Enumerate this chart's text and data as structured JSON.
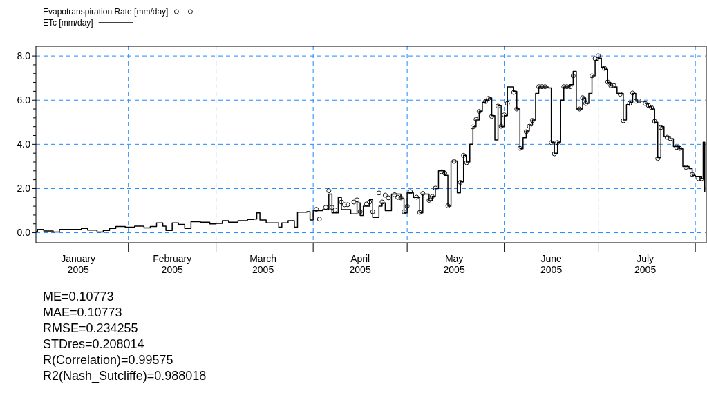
{
  "chart_data": {
    "type": "step",
    "xlim": [
      "2005-01-02T12:00",
      "2005-08-04T12:00"
    ],
    "xticks": [
      {
        "value": "2005-02-01",
        "label": null
      },
      {
        "value": "2005-03-01",
        "label": null
      },
      {
        "value": "2005-04-01",
        "label": null
      },
      {
        "value": "2005-05-01",
        "label": null
      },
      {
        "value": "2005-06-01",
        "label": null
      },
      {
        "value": "2005-07-01",
        "label": null
      },
      {
        "value": "2005-08-01",
        "label": null
      },
      {
        "value": "2005-01-16",
        "label": "January\n2005"
      },
      {
        "value": "2005-02-15",
        "label": "February\n2005"
      },
      {
        "value": "2005-03-16",
        "label": "March\n2005"
      },
      {
        "value": "2005-04-16",
        "label": "April\n2005"
      },
      {
        "value": "2005-05-16",
        "label": "May\n2005"
      },
      {
        "value": "2005-06-16",
        "label": "June\n2005"
      },
      {
        "value": "2005-07-16",
        "label": "July\n2005"
      }
    ],
    "ylim": [
      -0.45,
      8.44
    ],
    "yticks": [
      {
        "value": 0,
        "label": "0.0"
      },
      {
        "value": 0.4,
        "label": null
      },
      {
        "value": 0.8,
        "label": null
      },
      {
        "value": 1.2,
        "label": null
      },
      {
        "value": 1.6,
        "label": null
      },
      {
        "value": 2,
        "label": "2.0"
      },
      {
        "value": 2.4,
        "label": null
      },
      {
        "value": 2.8,
        "label": null
      },
      {
        "value": 3.2,
        "label": null
      },
      {
        "value": 3.6,
        "label": null
      },
      {
        "value": 4,
        "label": "4.0"
      },
      {
        "value": 4.4,
        "label": null
      },
      {
        "value": 4.8,
        "label": null
      },
      {
        "value": 5.2,
        "label": null
      },
      {
        "value": 5.6,
        "label": null
      },
      {
        "value": 6,
        "label": "6.0"
      },
      {
        "value": 6.4,
        "label": null
      },
      {
        "value": 6.8,
        "label": null
      },
      {
        "value": 7.2,
        "label": null
      },
      {
        "value": 7.6,
        "label": null
      },
      {
        "value": 8,
        "label": "8.0"
      }
    ],
    "grid": true,
    "legend": "top left",
    "series": [
      {
        "name": "Evapotranspiration Rate [mm/day]",
        "type": "scatter",
        "marker": "circle",
        "color": "#000000",
        "x": [
          "2005-04-02",
          "2005-04-03",
          "2005-04-05",
          "2005-04-06",
          "2005-04-07",
          "2005-04-08",
          "2005-04-10",
          "2005-04-11",
          "2005-04-12",
          "2005-04-14",
          "2005-04-15",
          "2005-04-16",
          "2005-04-18",
          "2005-04-19",
          "2005-04-20",
          "2005-04-22",
          "2005-04-23",
          "2005-04-24",
          "2005-04-25",
          "2005-04-27",
          "2005-04-28",
          "2005-04-29",
          "2005-04-30",
          "2005-05-01",
          "2005-05-02",
          "2005-05-04",
          "2005-05-05",
          "2005-05-06",
          "2005-05-08",
          "2005-05-09",
          "2005-05-10",
          "2005-05-12",
          "2005-05-13",
          "2005-05-14",
          "2005-05-16",
          "2005-05-18",
          "2005-05-19",
          "2005-05-20",
          "2005-05-22",
          "2005-05-23",
          "2005-05-24",
          "2005-05-26",
          "2005-05-27",
          "2005-05-28",
          "2005-05-30",
          "2005-05-31",
          "2005-06-01",
          "2005-06-02",
          "2005-06-04",
          "2005-06-05",
          "2005-06-06",
          "2005-06-08",
          "2005-06-09",
          "2005-06-10",
          "2005-06-12",
          "2005-06-13",
          "2005-06-14",
          "2005-06-16",
          "2005-06-17",
          "2005-06-18",
          "2005-06-20",
          "2005-06-21",
          "2005-06-22",
          "2005-06-23",
          "2005-06-25",
          "2005-06-26",
          "2005-06-27",
          "2005-06-29",
          "2005-06-30",
          "2005-07-01",
          "2005-07-03",
          "2005-07-04",
          "2005-07-05",
          "2005-07-06",
          "2005-07-08",
          "2005-07-09",
          "2005-07-11",
          "2005-07-12",
          "2005-07-13",
          "2005-07-14",
          "2005-07-16",
          "2005-07-17",
          "2005-07-18",
          "2005-07-19",
          "2005-07-20",
          "2005-07-21",
          "2005-07-23",
          "2005-07-24",
          "2005-07-26",
          "2005-07-27",
          "2005-07-29",
          "2005-07-31",
          "2005-08-02",
          "2005-08-03"
        ],
        "values": [
          1.06,
          0.62,
          1.15,
          1.9,
          1.15,
          1.03,
          1.39,
          1.27,
          1.27,
          1.39,
          1.49,
          0.95,
          1.3,
          1.39,
          0.95,
          1.8,
          1.39,
          1.7,
          1.58,
          1.72,
          1.6,
          1.58,
          0.95,
          1.2,
          1.86,
          1.61,
          0.92,
          1.78,
          1.47,
          1.64,
          2.02,
          2.76,
          2.7,
          1.22,
          3.23,
          2.28,
          3.5,
          3.17,
          4.79,
          5.13,
          5.49,
          5.94,
          6.08,
          5.27,
          5.73,
          4.82,
          5.33,
          5.85,
          6.35,
          5.6,
          3.82,
          4.57,
          4.82,
          5.08,
          6.61,
          6.61,
          6.61,
          4.08,
          3.57,
          4.08,
          6.61,
          6.61,
          6.61,
          7.1,
          5.6,
          6.11,
          5.85,
          7.1,
          7.88,
          8.01,
          7.44,
          6.82,
          6.66,
          6.66,
          6.27,
          5.07,
          5.85,
          6.32,
          5.95,
          5.97,
          5.85,
          5.76,
          5.66,
          5.04,
          3.36,
          4.76,
          4.32,
          4.26,
          3.86,
          3.82,
          2.96,
          2.64,
          2.45,
          2.45
        ]
      },
      {
        "name": "ETc [mm/day]",
        "line_style": "solid",
        "color": "#000000",
        "x": [
          "2005-01-02T12:00",
          "2005-01-03",
          "2005-01-05",
          "2005-01-08",
          "2005-01-10",
          "2005-01-14",
          "2005-01-17",
          "2005-01-19",
          "2005-01-22",
          "2005-01-24",
          "2005-01-26",
          "2005-01-28",
          "2005-01-31",
          "2005-02-03",
          "2005-02-06",
          "2005-02-08",
          "2005-02-10",
          "2005-02-12",
          "2005-02-13",
          "2005-02-15",
          "2005-02-17",
          "2005-02-19",
          "2005-02-21",
          "2005-02-24",
          "2005-02-27",
          "2005-03-01",
          "2005-03-03",
          "2005-03-05",
          "2005-03-08",
          "2005-03-11",
          "2005-03-13",
          "2005-03-14",
          "2005-03-15",
          "2005-03-17",
          "2005-03-19",
          "2005-03-21",
          "2005-03-22",
          "2005-03-24",
          "2005-03-26",
          "2005-03-27",
          "2005-03-30",
          "2005-03-31",
          "2005-04-01",
          "2005-04-04",
          "2005-04-06",
          "2005-04-07",
          "2005-04-09",
          "2005-04-10",
          "2005-04-13",
          "2005-04-15",
          "2005-04-16",
          "2005-04-17",
          "2005-04-19",
          "2005-04-20",
          "2005-04-22",
          "2005-04-23",
          "2005-04-24",
          "2005-04-26",
          "2005-04-29",
          "2005-04-30",
          "2005-05-01",
          "2005-05-03",
          "2005-05-05",
          "2005-05-06",
          "2005-05-08",
          "2005-05-09",
          "2005-05-10",
          "2005-05-11",
          "2005-05-13",
          "2005-05-14",
          "2005-05-15",
          "2005-05-17",
          "2005-05-18",
          "2005-05-19",
          "2005-05-20",
          "2005-05-21",
          "2005-05-22",
          "2005-05-23",
          "2005-05-24",
          "2005-05-25",
          "2005-05-26",
          "2005-05-27",
          "2005-05-28",
          "2005-05-29",
          "2005-05-30",
          "2005-05-31",
          "2005-06-01",
          "2005-06-02",
          "2005-06-04",
          "2005-06-05",
          "2005-06-06",
          "2005-06-07",
          "2005-06-08",
          "2005-06-09",
          "2005-06-10",
          "2005-06-11",
          "2005-06-12",
          "2005-06-15",
          "2005-06-16",
          "2005-06-17",
          "2005-06-18",
          "2005-06-19",
          "2005-06-20",
          "2005-06-22",
          "2005-06-23",
          "2005-06-24",
          "2005-06-26",
          "2005-06-27",
          "2005-06-28",
          "2005-06-29",
          "2005-06-30",
          "2005-07-01",
          "2005-07-02",
          "2005-07-03",
          "2005-07-04",
          "2005-07-05",
          "2005-07-06",
          "2005-07-07",
          "2005-07-09",
          "2005-07-10",
          "2005-07-11",
          "2005-07-12",
          "2005-07-13",
          "2005-07-14",
          "2005-07-16",
          "2005-07-17",
          "2005-07-18",
          "2005-07-19",
          "2005-07-20",
          "2005-07-21",
          "2005-07-22",
          "2005-07-24",
          "2005-07-25",
          "2005-07-27",
          "2005-07-28",
          "2005-07-30",
          "2005-07-31",
          "2005-08-01",
          "2005-08-03",
          "2005-08-03T12:00",
          "2005-08-04"
        ],
        "values": [
          0.05,
          0.15,
          0.08,
          0.03,
          0.15,
          0.15,
          0.2,
          0.12,
          0.03,
          0.1,
          0.2,
          0.28,
          0.25,
          0.3,
          0.22,
          0.28,
          0.45,
          0.3,
          0.1,
          0.45,
          0.38,
          0.2,
          0.5,
          0.48,
          0.4,
          0.42,
          0.55,
          0.48,
          0.55,
          0.6,
          0.62,
          0.9,
          0.58,
          0.45,
          0.45,
          0.25,
          0.45,
          0.55,
          0.25,
          0.93,
          0.95,
          0.58,
          1.0,
          1.05,
          1.75,
          0.9,
          1.6,
          1.05,
          0.85,
          1.35,
          0.78,
          1.2,
          1.5,
          0.7,
          1.2,
          1.35,
          1.0,
          1.75,
          1.55,
          0.9,
          1.8,
          1.6,
          0.9,
          1.75,
          1.45,
          1.65,
          2.0,
          2.8,
          2.6,
          1.2,
          3.25,
          1.8,
          2.3,
          3.5,
          3.2,
          4.0,
          4.8,
          5.1,
          5.5,
          5.9,
          6.0,
          6.1,
          5.3,
          4.2,
          5.75,
          4.8,
          5.3,
          6.6,
          6.4,
          5.6,
          3.8,
          4.3,
          4.6,
          4.85,
          5.1,
          6.3,
          6.6,
          6.55,
          4.1,
          3.6,
          4.1,
          6.0,
          6.6,
          6.7,
          7.3,
          5.6,
          6.1,
          5.85,
          6.3,
          7.1,
          7.8,
          7.9,
          7.5,
          7.4,
          6.8,
          6.65,
          6.6,
          6.3,
          5.1,
          5.8,
          5.9,
          6.3,
          5.95,
          5.95,
          5.85,
          5.7,
          5.6,
          5.0,
          3.4,
          4.8,
          4.35,
          4.25,
          3.9,
          3.8,
          3.0,
          2.9,
          2.6,
          2.55,
          2.45,
          4.1,
          1.85
        ]
      }
    ],
    "annotations": [
      "ME=0.10773",
      "MAE=0.10773",
      "RMSE=0.234255",
      "STDres=0.208014",
      "R(Correlation)=0.99575",
      "R2(Nash_Sutcliffe)=0.988018"
    ]
  }
}
